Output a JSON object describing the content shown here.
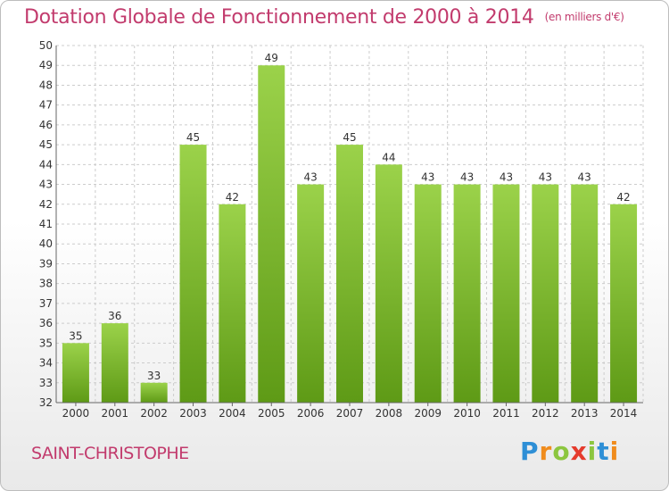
{
  "title": {
    "main": "Dotation Globale de Fonctionnement de 2000 à 2014",
    "unit": "(en milliers d'€)"
  },
  "commune": "SAINT-CHRISTOPHE",
  "logo": {
    "letters": [
      "P",
      "r",
      "o",
      "x",
      "i",
      "t",
      "i"
    ],
    "colors": [
      "#2e8fd6",
      "#f08c1d",
      "#8cc63f",
      "#e53b2c",
      "#8cc63f",
      "#2e8fd6",
      "#f08c1d"
    ]
  },
  "colors": {
    "bar_top": "#9bd24a",
    "bar_bottom": "#5e9a16",
    "grid": "#cccccc",
    "title": "#c23b6d"
  },
  "chart_data": {
    "type": "bar",
    "categories": [
      "2000",
      "2001",
      "2002",
      "2003",
      "2004",
      "2005",
      "2006",
      "2007",
      "2008",
      "2009",
      "2010",
      "2011",
      "2012",
      "2013",
      "2014"
    ],
    "values": [
      35,
      36,
      33,
      45,
      42,
      49,
      43,
      45,
      44,
      43,
      43,
      43,
      43,
      43,
      42
    ],
    "title": "Dotation Globale de Fonctionnement de 2000 à 2014",
    "ylim": [
      32,
      50
    ],
    "yticks": [
      32,
      33,
      34,
      35,
      36,
      37,
      38,
      39,
      40,
      41,
      42,
      43,
      44,
      45,
      46,
      47,
      48,
      49,
      50
    ],
    "grid": true
  }
}
